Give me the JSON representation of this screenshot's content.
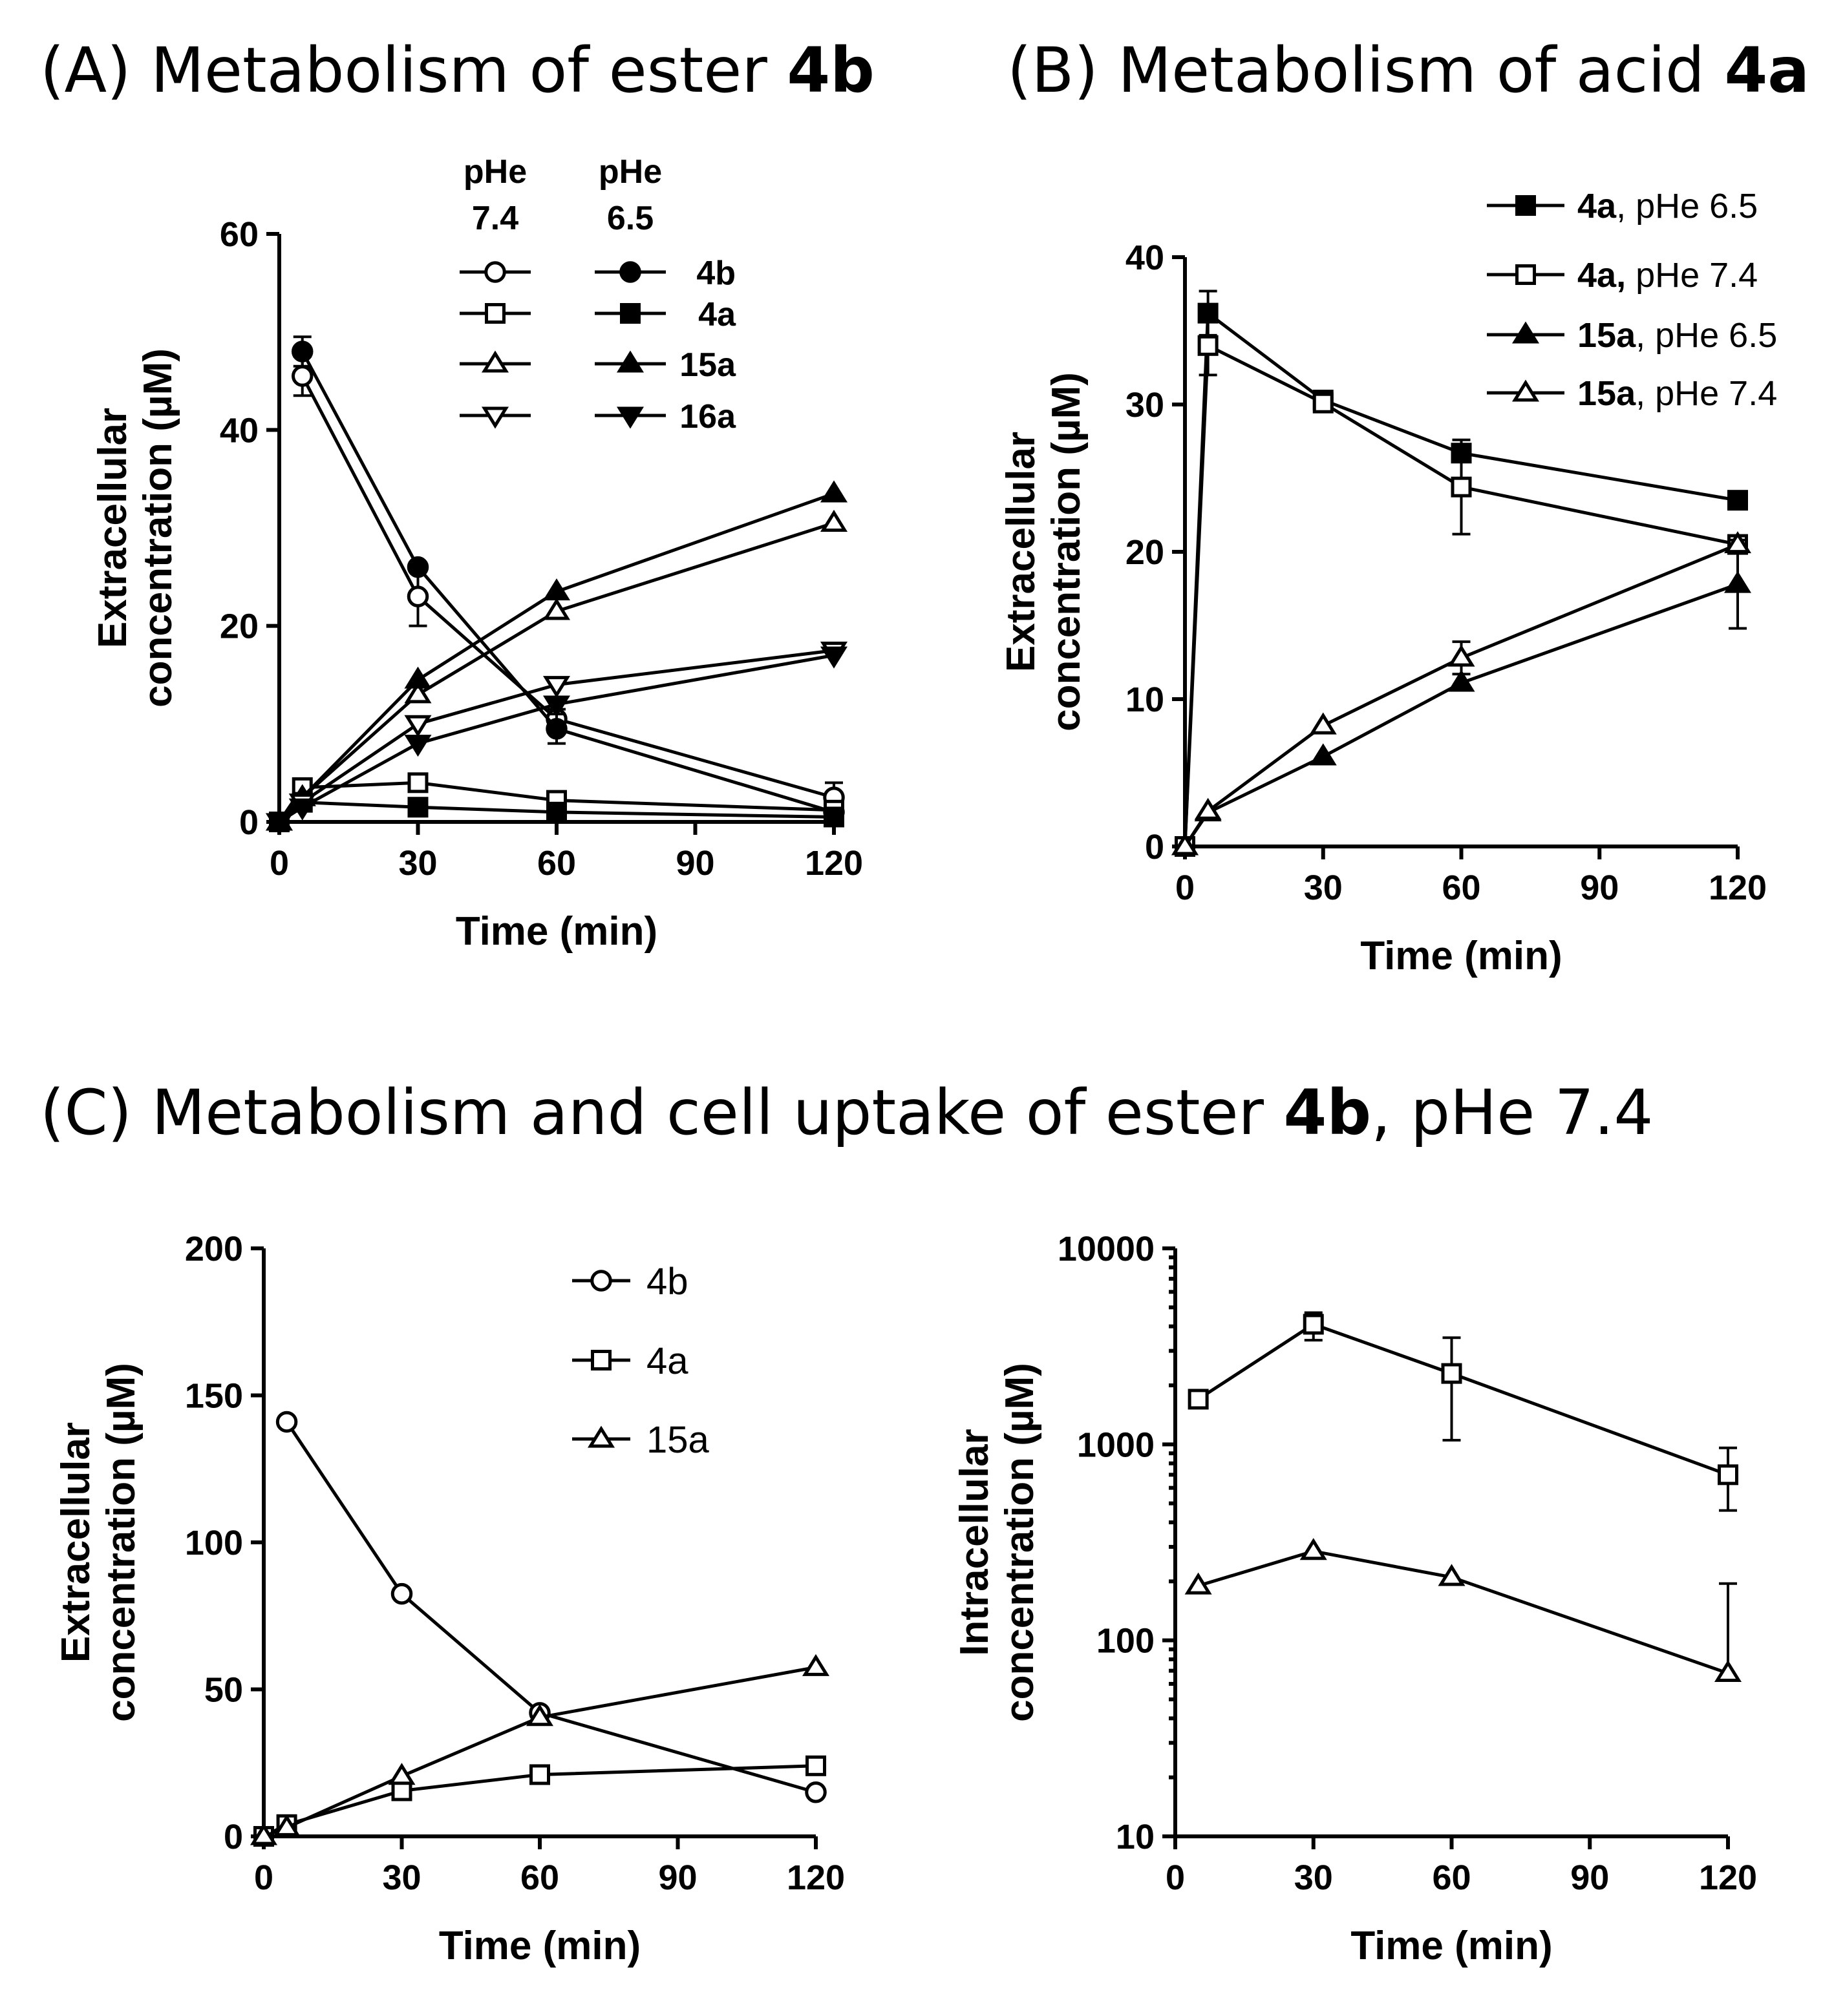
{
  "titles": {
    "A_text": "(A) Metabolism of ester ",
    "A_bold": "4b",
    "B_text": "(B) Metabolism of acid ",
    "B_bold": "4a",
    "C_text": "(C) Metabolism and cell uptake of ester ",
    "C_bold": "4b",
    "C_tail": ", pHe 7.4"
  },
  "chart_data": [
    {
      "id": "A",
      "type": "line",
      "title": "(A) Metabolism of ester 4b",
      "xlabel": "Time (min)",
      "ylabel": [
        "Extracellular",
        "concentration (µM)"
      ],
      "xlim": [
        0,
        120
      ],
      "ylim": [
        0,
        60
      ],
      "xticks": [
        0,
        30,
        60,
        90,
        120
      ],
      "yticks": [
        0,
        20,
        40,
        60
      ],
      "legend_headers": [
        [
          "pHe",
          "7.4"
        ],
        [
          "pHe",
          "6.5"
        ]
      ],
      "legend_labels": [
        "4b",
        "4a",
        "15a",
        "16a"
      ],
      "series": [
        {
          "name": "4b",
          "condition": "pHe 7.4",
          "marker": "circle",
          "filled": false,
          "x": [
            5,
            30,
            60,
            120
          ],
          "y": [
            45.5,
            23,
            10.5,
            2.5
          ],
          "err": [
            2,
            3,
            1,
            1.5
          ]
        },
        {
          "name": "4b",
          "condition": "pHe 6.5",
          "marker": "circle",
          "filled": true,
          "x": [
            5,
            30,
            60,
            120
          ],
          "y": [
            48,
            26,
            9.5,
            1
          ],
          "err": [
            1.5,
            0,
            1.5,
            0
          ]
        },
        {
          "name": "4a",
          "condition": "pHe 7.4",
          "marker": "square",
          "filled": false,
          "x": [
            0,
            5,
            30,
            60,
            120
          ],
          "y": [
            0,
            3.5,
            4,
            2.2,
            1.2
          ],
          "err": [
            0,
            0,
            0,
            0,
            0
          ]
        },
        {
          "name": "4a",
          "condition": "pHe 6.5",
          "marker": "square",
          "filled": true,
          "x": [
            0,
            5,
            30,
            60,
            120
          ],
          "y": [
            0,
            2,
            1.5,
            1,
            0.5
          ],
          "err": [
            0,
            0,
            0,
            0,
            0
          ]
        },
        {
          "name": "15a",
          "condition": "pHe 7.4",
          "marker": "triangle",
          "filled": false,
          "x": [
            0,
            5,
            30,
            60,
            120
          ],
          "y": [
            0,
            2.5,
            13,
            21.5,
            30.5
          ],
          "err": [
            0,
            0,
            0,
            0,
            0
          ]
        },
        {
          "name": "15a",
          "condition": "pHe 6.5",
          "marker": "triangle",
          "filled": true,
          "x": [
            0,
            5,
            30,
            60,
            120
          ],
          "y": [
            0,
            2.5,
            14.5,
            23.5,
            33.5
          ],
          "err": [
            0,
            0,
            0,
            0,
            0
          ]
        },
        {
          "name": "16a",
          "condition": "pHe 7.4",
          "marker": "triangle-down",
          "filled": false,
          "x": [
            0,
            5,
            30,
            60,
            120
          ],
          "y": [
            0,
            2,
            10,
            14,
            17.5
          ],
          "err": [
            0,
            0,
            0,
            0,
            0
          ]
        },
        {
          "name": "16a",
          "condition": "pHe 6.5",
          "marker": "triangle-down",
          "filled": true,
          "x": [
            0,
            5,
            30,
            60,
            120
          ],
          "y": [
            0,
            1.5,
            8,
            12,
            17
          ],
          "err": [
            0,
            0,
            0,
            0,
            0
          ]
        }
      ]
    },
    {
      "id": "B",
      "type": "line",
      "title": "(B) Metabolism of acid 4a",
      "xlabel": "Time (min)",
      "ylabel": [
        "Extracellular",
        "concentration (µM)"
      ],
      "xlim": [
        0,
        120
      ],
      "ylim": [
        0,
        40
      ],
      "xticks": [
        0,
        30,
        60,
        90,
        120
      ],
      "yticks": [
        0,
        10,
        20,
        30,
        40
      ],
      "series": [
        {
          "name": "4a",
          "condition": "pHe 6.5",
          "legend_bold": "4a",
          "legend_rest": ", pHe 6.5",
          "marker": "square",
          "filled": true,
          "x": [
            0,
            5,
            30,
            60,
            120
          ],
          "y": [
            0,
            36.2,
            30.3,
            26.7,
            23.5
          ],
          "err": [
            0,
            1.5,
            0,
            0,
            0
          ]
        },
        {
          "name": "4a",
          "condition": "pHe 7.4",
          "legend_bold": "4a,",
          "legend_rest": " pHe 7.4",
          "marker": "square",
          "filled": false,
          "x": [
            0,
            5,
            30,
            60,
            120
          ],
          "y": [
            0,
            34,
            30.1,
            24.4,
            20.5
          ],
          "err": [
            0,
            2,
            0,
            3.2,
            0
          ]
        },
        {
          "name": "15a",
          "condition": "pHe 6.5",
          "legend_bold": "15a",
          "legend_rest": ", pHe 6.5",
          "marker": "triangle",
          "filled": true,
          "x": [
            0,
            5,
            30,
            60,
            120
          ],
          "y": [
            0,
            2.3,
            6.1,
            11.1,
            17.8
          ],
          "err": [
            0,
            0,
            0,
            0,
            3
          ]
        },
        {
          "name": "15a",
          "condition": "pHe 7.4",
          "legend_bold": "15a",
          "legend_rest": ", pHe 7.4",
          "marker": "triangle",
          "filled": false,
          "x": [
            0,
            5,
            30,
            60,
            120
          ],
          "y": [
            0,
            2.4,
            8.2,
            12.8,
            20.5
          ],
          "err": [
            0,
            0,
            0,
            1.1,
            0
          ]
        }
      ]
    },
    {
      "id": "C1",
      "type": "line",
      "title": "(C) Metabolism and cell uptake of ester 4b, pHe 7.4",
      "xlabel": "Time (min)",
      "ylabel": [
        "Extracellular",
        "concentration (µM)"
      ],
      "xlim": [
        0,
        120
      ],
      "ylim": [
        0,
        200
      ],
      "xticks": [
        0,
        30,
        60,
        90,
        120
      ],
      "yticks": [
        0,
        50,
        100,
        150,
        200
      ],
      "series": [
        {
          "name": "4b",
          "marker": "circle",
          "filled": false,
          "x": [
            5,
            30,
            60,
            120
          ],
          "y": [
            141,
            82.5,
            42,
            15
          ],
          "err": [
            0,
            0,
            0,
            0
          ]
        },
        {
          "name": "4a",
          "marker": "square",
          "filled": false,
          "x": [
            0,
            5,
            30,
            60,
            120
          ],
          "y": [
            0,
            4,
            15.5,
            21,
            24
          ],
          "err": [
            0,
            0,
            0,
            0,
            0
          ]
        },
        {
          "name": "15a",
          "marker": "triangle",
          "filled": false,
          "x": [
            0,
            5,
            30,
            60,
            120
          ],
          "y": [
            0,
            3,
            20.5,
            40.5,
            57.5
          ],
          "err": [
            0,
            0,
            0,
            0,
            0
          ]
        }
      ]
    },
    {
      "id": "C2",
      "type": "line",
      "yscale": "log",
      "xlabel": "Time (min)",
      "ylabel": [
        "Intracellular",
        "concentration (µM)"
      ],
      "xlim": [
        0,
        120
      ],
      "ylim": [
        10,
        10000
      ],
      "xticks": [
        0,
        30,
        60,
        90,
        120
      ],
      "yticks": [
        10,
        100,
        1000,
        10000
      ],
      "series": [
        {
          "name": "4a",
          "marker": "square",
          "filled": false,
          "x": [
            5,
            30,
            60,
            120
          ],
          "y": [
            1700,
            4100,
            2300,
            700
          ],
          "err_low": [
            0,
            3400,
            1050,
            460
          ],
          "err_high": [
            0,
            4700,
            3500,
            960
          ]
        },
        {
          "name": "15a",
          "marker": "triangle",
          "filled": false,
          "x": [
            5,
            30,
            60,
            120
          ],
          "y": [
            190,
            285,
            210,
            68
          ],
          "err_low": [
            0,
            0,
            0,
            0
          ],
          "err_high": [
            0,
            0,
            0,
            195
          ]
        }
      ]
    }
  ]
}
